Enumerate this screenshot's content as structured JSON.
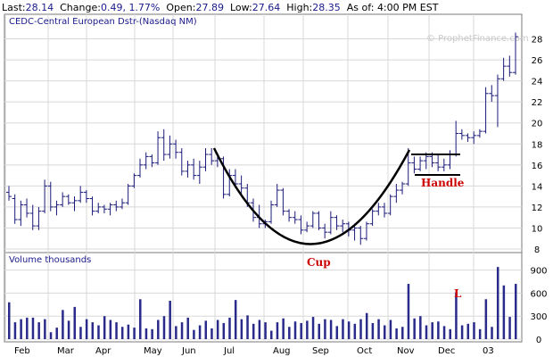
{
  "quote": {
    "last_label": "Last:",
    "last": "28.14",
    "change_label": "Change:",
    "change": "0.49, 1.77%",
    "open_label": "Open:",
    "open": "27.89",
    "low_label": "Low:",
    "low": "27.64",
    "high_label": "High:",
    "high": "28.35",
    "asof_label": "As of:",
    "asof": "4:00 PM EST"
  },
  "chart_data": [
    {
      "type": "ohlc",
      "title": "CEDC-Central European Dstr-(Nasdaq NM)",
      "watermark": "© ProphetFinance.com",
      "ylim": [
        8,
        30
      ],
      "yticks": [
        8,
        10,
        12,
        14,
        16,
        18,
        20,
        22,
        24,
        26,
        28
      ],
      "xlabels": [
        "Feb",
        "Mar",
        "Apr",
        "May",
        "Jun",
        "Jul",
        "Aug",
        "Sep",
        "Oct",
        "Nov",
        "Dec",
        "03"
      ],
      "grid": true,
      "annotations": [
        "Cup",
        "Handle"
      ],
      "bars": [
        [
          1,
          13.4,
          14.0,
          12.6,
          13.0
        ],
        [
          2,
          12.8,
          13.2,
          10.4,
          10.8
        ],
        [
          3,
          10.8,
          12.6,
          10.2,
          12.2
        ],
        [
          4,
          12.2,
          12.8,
          11.0,
          11.4
        ],
        [
          5,
          11.4,
          12.2,
          9.8,
          10.2
        ],
        [
          6,
          10.2,
          12.0,
          9.8,
          11.6
        ],
        [
          7,
          11.6,
          14.6,
          11.4,
          14.0
        ],
        [
          8,
          14.0,
          14.4,
          11.6,
          12.0
        ],
        [
          9,
          12.0,
          12.6,
          11.2,
          12.2
        ],
        [
          10,
          12.2,
          13.4,
          12.0,
          13.0
        ],
        [
          11,
          13.0,
          13.2,
          12.2,
          12.4
        ],
        [
          12,
          12.4,
          13.0,
          11.6,
          12.6
        ],
        [
          13,
          12.6,
          14.0,
          12.4,
          13.4
        ],
        [
          14,
          13.4,
          13.6,
          12.4,
          12.8
        ],
        [
          15,
          12.8,
          13.0,
          11.2,
          11.6
        ],
        [
          16,
          11.6,
          12.4,
          11.4,
          12.0
        ],
        [
          17,
          12.0,
          12.2,
          11.4,
          11.8
        ],
        [
          18,
          11.8,
          12.4,
          11.2,
          12.2
        ],
        [
          19,
          12.2,
          12.6,
          11.6,
          12.0
        ],
        [
          20,
          12.0,
          12.8,
          11.8,
          12.4
        ],
        [
          21,
          12.4,
          14.2,
          12.2,
          14.0
        ],
        [
          22,
          14.0,
          15.2,
          13.8,
          15.0
        ],
        [
          23,
          15.0,
          16.6,
          14.8,
          16.0
        ],
        [
          24,
          16.0,
          17.2,
          15.6,
          16.8
        ],
        [
          25,
          16.8,
          17.0,
          15.8,
          16.2
        ],
        [
          26,
          16.2,
          19.2,
          16.0,
          18.6
        ],
        [
          27,
          18.6,
          19.4,
          16.4,
          17.0
        ],
        [
          28,
          17.0,
          18.8,
          16.6,
          18.0
        ],
        [
          29,
          18.0,
          18.4,
          16.6,
          17.2
        ],
        [
          30,
          17.2,
          17.6,
          15.0,
          15.4
        ],
        [
          31,
          15.4,
          16.4,
          14.8,
          16.0
        ],
        [
          32,
          16.0,
          16.6,
          14.6,
          15.0
        ],
        [
          33,
          15.0,
          16.4,
          14.2,
          15.8
        ],
        [
          34,
          15.8,
          17.6,
          15.4,
          17.0
        ],
        [
          35,
          17.0,
          17.6,
          16.0,
          16.4
        ],
        [
          36,
          16.4,
          16.8,
          15.8,
          16.6
        ],
        [
          37,
          16.6,
          16.8,
          12.8,
          13.2
        ],
        [
          38,
          13.2,
          15.6,
          13.0,
          15.0
        ],
        [
          39,
          15.0,
          15.6,
          13.8,
          14.2
        ],
        [
          40,
          14.2,
          15.0,
          13.2,
          13.8
        ],
        [
          41,
          13.8,
          14.2,
          12.0,
          12.4
        ],
        [
          42,
          12.4,
          12.8,
          10.6,
          11.0
        ],
        [
          43,
          11.0,
          12.2,
          10.0,
          10.4
        ],
        [
          44,
          10.4,
          10.8,
          10.0,
          10.6
        ],
        [
          45,
          10.6,
          12.6,
          10.4,
          12.2
        ],
        [
          46,
          12.2,
          14.2,
          12.0,
          13.6
        ],
        [
          47,
          13.6,
          13.8,
          11.2,
          11.6
        ],
        [
          48,
          11.6,
          11.8,
          10.6,
          11.0
        ],
        [
          49,
          11.0,
          11.6,
          10.4,
          10.8
        ],
        [
          50,
          10.8,
          11.2,
          9.4,
          9.8
        ],
        [
          51,
          9.8,
          10.6,
          9.6,
          10.2
        ],
        [
          52,
          10.2,
          11.6,
          10.0,
          11.4
        ],
        [
          53,
          11.4,
          11.6,
          9.8,
          10.0
        ],
        [
          54,
          10.0,
          10.4,
          9.0,
          9.6
        ],
        [
          55,
          9.6,
          11.6,
          9.4,
          11.0
        ],
        [
          56,
          11.0,
          11.2,
          9.8,
          10.2
        ],
        [
          57,
          10.2,
          10.8,
          9.6,
          10.4
        ],
        [
          58,
          10.4,
          10.6,
          9.2,
          9.8
        ],
        [
          59,
          9.8,
          10.4,
          8.8,
          10.0
        ],
        [
          60,
          10.0,
          10.2,
          8.4,
          9.0
        ],
        [
          61,
          9.0,
          10.6,
          8.8,
          10.4
        ],
        [
          62,
          10.4,
          11.8,
          10.2,
          11.6
        ],
        [
          63,
          11.6,
          12.4,
          11.2,
          12.0
        ],
        [
          64,
          12.0,
          12.4,
          11.0,
          11.4
        ],
        [
          65,
          11.4,
          13.2,
          11.2,
          13.0
        ],
        [
          66,
          13.0,
          14.2,
          12.4,
          13.6
        ],
        [
          67,
          13.6,
          14.4,
          13.2,
          14.2
        ],
        [
          68,
          14.2,
          17.6,
          14.0,
          16.2
        ],
        [
          69,
          16.2,
          16.8,
          15.2,
          15.6
        ],
        [
          70,
          15.6,
          16.8,
          15.4,
          16.4
        ],
        [
          71,
          16.4,
          17.2,
          15.6,
          16.8
        ],
        [
          72,
          16.8,
          17.2,
          15.8,
          16.2
        ],
        [
          73,
          16.2,
          17.0,
          15.4,
          15.8
        ],
        [
          74,
          15.8,
          16.6,
          15.4,
          16.0
        ],
        [
          75,
          16.0,
          17.4,
          15.6,
          17.0
        ],
        [
          76,
          17.0,
          20.2,
          16.8,
          19.0
        ],
        [
          77,
          19.0,
          19.4,
          18.4,
          18.8
        ],
        [
          78,
          18.8,
          19.0,
          18.2,
          18.6
        ],
        [
          79,
          18.6,
          19.2,
          18.0,
          18.8
        ],
        [
          80,
          18.8,
          19.4,
          18.6,
          19.2
        ],
        [
          81,
          19.2,
          23.4,
          19.0,
          22.8
        ],
        [
          82,
          22.8,
          23.6,
          22.0,
          22.6
        ],
        [
          83,
          22.6,
          24.6,
          19.6,
          24.2
        ],
        [
          84,
          24.2,
          26.2,
          24.0,
          25.4
        ],
        [
          85,
          25.4,
          26.4,
          24.4,
          24.8
        ],
        [
          86,
          24.8,
          28.6,
          24.6,
          28.2
        ]
      ]
    },
    {
      "type": "bar",
      "title": "Volume  thousands",
      "ylim": [
        0,
        1000
      ],
      "yticks": [
        0,
        300,
        600,
        900
      ],
      "label_annotation": "L",
      "values": [
        480,
        220,
        260,
        280,
        280,
        220,
        260,
        90,
        150,
        380,
        240,
        420,
        160,
        260,
        220,
        180,
        300,
        250,
        220,
        160,
        190,
        150,
        520,
        140,
        130,
        250,
        300,
        500,
        170,
        220,
        280,
        120,
        180,
        240,
        140,
        250,
        210,
        280,
        510,
        260,
        310,
        200,
        250,
        220,
        110,
        220,
        270,
        160,
        230,
        210,
        240,
        290,
        200,
        260,
        250,
        170,
        260,
        230,
        200,
        260,
        340,
        210,
        260,
        180,
        250,
        140,
        160,
        720,
        270,
        300,
        180,
        220,
        230,
        170,
        130,
        610,
        180,
        200,
        220,
        130,
        520,
        160,
        940,
        700,
        290,
        720
      ]
    }
  ]
}
